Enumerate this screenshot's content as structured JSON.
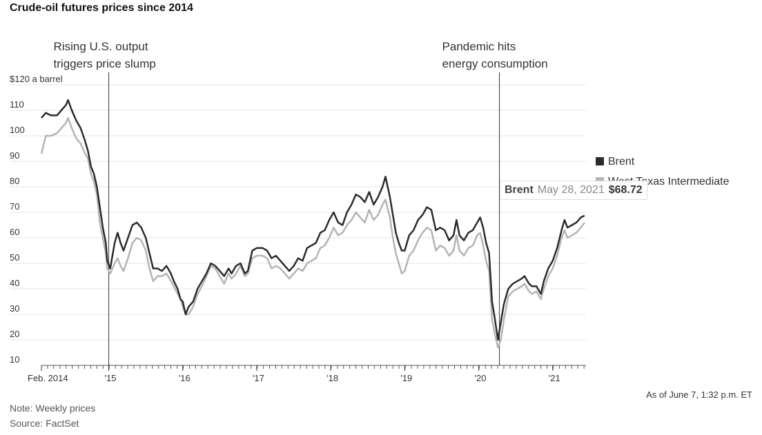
{
  "title": "Crude-oil futures prices since 2014",
  "notes": {
    "note": "Note: Weekly prices",
    "source": "Source: FactSet",
    "asof": "As of June 7, 1:32 p.m. ET"
  },
  "legend": {
    "brent": "Brent",
    "wti": "West Texas Intermediate"
  },
  "tooltip": {
    "series": "Brent",
    "date": "May 28, 2021",
    "value": "$68.72"
  },
  "annotations": [
    {
      "lines": [
        "Rising U.S. output",
        "triggers price slump"
      ],
      "x": 2015.0
    },
    {
      "lines": [
        "Pandemic hits",
        "energy consumption"
      ],
      "x": 2020.28
    }
  ],
  "colors": {
    "brent": "#2b2b2b",
    "wti": "#b4b4b4",
    "grid": "#e6e6e6",
    "annotation_line": "#333333"
  },
  "chart_data": {
    "type": "line",
    "title": "Crude-oil futures prices since 2014",
    "ylabel": "$120 a barrel",
    "xlim": [
      2014.09,
      2021.45
    ],
    "ylim": [
      10,
      120
    ],
    "yticks": [
      120,
      110,
      100,
      90,
      80,
      70,
      60,
      50,
      40,
      30,
      20,
      10
    ],
    "ytick_labels": [
      "$120 a barrel",
      "110",
      "100",
      "90",
      "80",
      "70",
      "60",
      "50",
      "40",
      "30",
      "20",
      "10"
    ],
    "xticks": [
      {
        "x": 2014.09,
        "label": "Feb. 2014"
      },
      {
        "x": 2015.0,
        "label": "'15"
      },
      {
        "x": 2016.0,
        "label": "'16"
      },
      {
        "x": 2017.0,
        "label": "'17"
      },
      {
        "x": 2018.0,
        "label": "'18"
      },
      {
        "x": 2019.0,
        "label": "'19"
      },
      {
        "x": 2020.0,
        "label": "'20"
      },
      {
        "x": 2021.0,
        "label": "'21"
      }
    ],
    "grid": true,
    "legend_position": "right",
    "series": [
      {
        "name": "Brent",
        "points": [
          [
            2014.09,
            107
          ],
          [
            2014.15,
            109
          ],
          [
            2014.22,
            108
          ],
          [
            2014.3,
            108
          ],
          [
            2014.36,
            110
          ],
          [
            2014.42,
            112
          ],
          [
            2014.45,
            114
          ],
          [
            2014.5,
            110
          ],
          [
            2014.56,
            106
          ],
          [
            2014.62,
            103
          ],
          [
            2014.68,
            98
          ],
          [
            2014.72,
            94
          ],
          [
            2014.76,
            88
          ],
          [
            2014.8,
            85
          ],
          [
            2014.84,
            80
          ],
          [
            2014.88,
            72
          ],
          [
            2014.92,
            64
          ],
          [
            2014.96,
            58
          ],
          [
            2014.98,
            51
          ],
          [
            2015.02,
            48
          ],
          [
            2015.08,
            58
          ],
          [
            2015.12,
            62
          ],
          [
            2015.16,
            58
          ],
          [
            2015.2,
            55
          ],
          [
            2015.26,
            60
          ],
          [
            2015.32,
            65
          ],
          [
            2015.38,
            66
          ],
          [
            2015.44,
            64
          ],
          [
            2015.5,
            60
          ],
          [
            2015.55,
            54
          ],
          [
            2015.6,
            48
          ],
          [
            2015.66,
            48
          ],
          [
            2015.72,
            47
          ],
          [
            2015.78,
            49
          ],
          [
            2015.84,
            46
          ],
          [
            2015.88,
            43
          ],
          [
            2015.93,
            40
          ],
          [
            2015.97,
            36
          ],
          [
            2016.0,
            35
          ],
          [
            2016.04,
            30
          ],
          [
            2016.08,
            33
          ],
          [
            2016.14,
            35
          ],
          [
            2016.2,
            40
          ],
          [
            2016.26,
            43
          ],
          [
            2016.32,
            46
          ],
          [
            2016.38,
            50
          ],
          [
            2016.44,
            49
          ],
          [
            2016.5,
            47
          ],
          [
            2016.56,
            45
          ],
          [
            2016.62,
            48
          ],
          [
            2016.66,
            46
          ],
          [
            2016.72,
            49
          ],
          [
            2016.78,
            50
          ],
          [
            2016.84,
            46
          ],
          [
            2016.88,
            47
          ],
          [
            2016.94,
            55
          ],
          [
            2017.0,
            56
          ],
          [
            2017.08,
            56
          ],
          [
            2017.14,
            55
          ],
          [
            2017.2,
            52
          ],
          [
            2017.26,
            53
          ],
          [
            2017.32,
            51
          ],
          [
            2017.38,
            49
          ],
          [
            2017.44,
            47
          ],
          [
            2017.5,
            49
          ],
          [
            2017.56,
            52
          ],
          [
            2017.62,
            51
          ],
          [
            2017.68,
            56
          ],
          [
            2017.74,
            57
          ],
          [
            2017.8,
            58
          ],
          [
            2017.86,
            62
          ],
          [
            2017.92,
            63
          ],
          [
            2017.98,
            67
          ],
          [
            2018.04,
            70
          ],
          [
            2018.1,
            66
          ],
          [
            2018.16,
            65
          ],
          [
            2018.22,
            70
          ],
          [
            2018.28,
            73
          ],
          [
            2018.34,
            77
          ],
          [
            2018.4,
            76
          ],
          [
            2018.46,
            74
          ],
          [
            2018.52,
            78
          ],
          [
            2018.58,
            73
          ],
          [
            2018.64,
            76
          ],
          [
            2018.7,
            80
          ],
          [
            2018.74,
            84
          ],
          [
            2018.8,
            76
          ],
          [
            2018.84,
            69
          ],
          [
            2018.88,
            62
          ],
          [
            2018.92,
            58
          ],
          [
            2018.96,
            55
          ],
          [
            2019.0,
            55
          ],
          [
            2019.06,
            61
          ],
          [
            2019.12,
            63
          ],
          [
            2019.18,
            67
          ],
          [
            2019.24,
            69
          ],
          [
            2019.3,
            72
          ],
          [
            2019.36,
            71
          ],
          [
            2019.42,
            63
          ],
          [
            2019.48,
            64
          ],
          [
            2019.54,
            63
          ],
          [
            2019.6,
            59
          ],
          [
            2019.66,
            61
          ],
          [
            2019.7,
            67
          ],
          [
            2019.74,
            61
          ],
          [
            2019.8,
            59
          ],
          [
            2019.86,
            62
          ],
          [
            2019.92,
            63
          ],
          [
            2019.98,
            66
          ],
          [
            2020.02,
            68
          ],
          [
            2020.06,
            64
          ],
          [
            2020.1,
            58
          ],
          [
            2020.14,
            54
          ],
          [
            2020.18,
            35
          ],
          [
            2020.22,
            28
          ],
          [
            2020.26,
            20
          ],
          [
            2020.3,
            27
          ],
          [
            2020.34,
            34
          ],
          [
            2020.4,
            40
          ],
          [
            2020.46,
            42
          ],
          [
            2020.52,
            43
          ],
          [
            2020.58,
            44
          ],
          [
            2020.62,
            45
          ],
          [
            2020.68,
            42
          ],
          [
            2020.72,
            41
          ],
          [
            2020.78,
            41
          ],
          [
            2020.84,
            38
          ],
          [
            2020.88,
            43
          ],
          [
            2020.94,
            48
          ],
          [
            2021.0,
            51
          ],
          [
            2021.06,
            56
          ],
          [
            2021.12,
            63
          ],
          [
            2021.16,
            67
          ],
          [
            2021.2,
            64
          ],
          [
            2021.26,
            65
          ],
          [
            2021.32,
            66
          ],
          [
            2021.38,
            68
          ],
          [
            2021.43,
            68.72
          ]
        ]
      },
      {
        "name": "West Texas Intermediate",
        "points": [
          [
            2014.09,
            93
          ],
          [
            2014.15,
            100
          ],
          [
            2014.22,
            100
          ],
          [
            2014.3,
            101
          ],
          [
            2014.36,
            103
          ],
          [
            2014.42,
            105
          ],
          [
            2014.45,
            107
          ],
          [
            2014.5,
            103
          ],
          [
            2014.56,
            99
          ],
          [
            2014.62,
            97
          ],
          [
            2014.68,
            93
          ],
          [
            2014.72,
            91
          ],
          [
            2014.76,
            85
          ],
          [
            2014.8,
            82
          ],
          [
            2014.84,
            77
          ],
          [
            2014.88,
            66
          ],
          [
            2014.92,
            60
          ],
          [
            2014.96,
            54
          ],
          [
            2014.98,
            48
          ],
          [
            2015.02,
            46
          ],
          [
            2015.08,
            50
          ],
          [
            2015.12,
            52
          ],
          [
            2015.16,
            49
          ],
          [
            2015.2,
            47
          ],
          [
            2015.26,
            52
          ],
          [
            2015.32,
            58
          ],
          [
            2015.38,
            60
          ],
          [
            2015.44,
            59
          ],
          [
            2015.5,
            55
          ],
          [
            2015.55,
            48
          ],
          [
            2015.6,
            43
          ],
          [
            2015.66,
            45
          ],
          [
            2015.72,
            45
          ],
          [
            2015.78,
            46
          ],
          [
            2015.84,
            43
          ],
          [
            2015.88,
            41
          ],
          [
            2015.93,
            38
          ],
          [
            2015.97,
            36
          ],
          [
            2016.0,
            33
          ],
          [
            2016.04,
            30
          ],
          [
            2016.08,
            30
          ],
          [
            2016.14,
            33
          ],
          [
            2016.2,
            38
          ],
          [
            2016.26,
            41
          ],
          [
            2016.32,
            45
          ],
          [
            2016.38,
            49
          ],
          [
            2016.44,
            48
          ],
          [
            2016.5,
            45
          ],
          [
            2016.56,
            42
          ],
          [
            2016.62,
            46
          ],
          [
            2016.66,
            44
          ],
          [
            2016.72,
            46
          ],
          [
            2016.78,
            49
          ],
          [
            2016.84,
            45
          ],
          [
            2016.88,
            46
          ],
          [
            2016.94,
            52
          ],
          [
            2017.0,
            53
          ],
          [
            2017.08,
            53
          ],
          [
            2017.14,
            52
          ],
          [
            2017.2,
            48
          ],
          [
            2017.26,
            49
          ],
          [
            2017.32,
            48
          ],
          [
            2017.38,
            46
          ],
          [
            2017.44,
            44
          ],
          [
            2017.5,
            46
          ],
          [
            2017.56,
            48
          ],
          [
            2017.62,
            47
          ],
          [
            2017.68,
            50
          ],
          [
            2017.74,
            51
          ],
          [
            2017.8,
            52
          ],
          [
            2017.86,
            56
          ],
          [
            2017.92,
            57
          ],
          [
            2017.98,
            60
          ],
          [
            2018.04,
            64
          ],
          [
            2018.1,
            61
          ],
          [
            2018.16,
            62
          ],
          [
            2018.22,
            65
          ],
          [
            2018.28,
            67
          ],
          [
            2018.34,
            70
          ],
          [
            2018.4,
            68
          ],
          [
            2018.46,
            66
          ],
          [
            2018.52,
            71
          ],
          [
            2018.58,
            67
          ],
          [
            2018.64,
            69
          ],
          [
            2018.7,
            73
          ],
          [
            2018.74,
            75
          ],
          [
            2018.8,
            68
          ],
          [
            2018.84,
            60
          ],
          [
            2018.88,
            54
          ],
          [
            2018.92,
            50
          ],
          [
            2018.96,
            46
          ],
          [
            2019.0,
            47
          ],
          [
            2019.06,
            53
          ],
          [
            2019.12,
            55
          ],
          [
            2019.18,
            59
          ],
          [
            2019.24,
            62
          ],
          [
            2019.3,
            64
          ],
          [
            2019.36,
            63
          ],
          [
            2019.42,
            55
          ],
          [
            2019.48,
            57
          ],
          [
            2019.54,
            56
          ],
          [
            2019.6,
            53
          ],
          [
            2019.66,
            55
          ],
          [
            2019.7,
            61
          ],
          [
            2019.74,
            55
          ],
          [
            2019.8,
            53
          ],
          [
            2019.86,
            56
          ],
          [
            2019.92,
            57
          ],
          [
            2019.98,
            61
          ],
          [
            2020.02,
            62
          ],
          [
            2020.06,
            57
          ],
          [
            2020.1,
            51
          ],
          [
            2020.14,
            47
          ],
          [
            2020.18,
            28
          ],
          [
            2020.22,
            22
          ],
          [
            2020.26,
            17
          ],
          [
            2020.3,
            20
          ],
          [
            2020.34,
            28
          ],
          [
            2020.4,
            37
          ],
          [
            2020.46,
            39
          ],
          [
            2020.52,
            40
          ],
          [
            2020.58,
            41
          ],
          [
            2020.62,
            42
          ],
          [
            2020.68,
            39
          ],
          [
            2020.72,
            38
          ],
          [
            2020.78,
            39
          ],
          [
            2020.84,
            36
          ],
          [
            2020.88,
            40
          ],
          [
            2020.94,
            45
          ],
          [
            2021.0,
            48
          ],
          [
            2021.06,
            53
          ],
          [
            2021.12,
            60
          ],
          [
            2021.16,
            63
          ],
          [
            2021.2,
            60
          ],
          [
            2021.26,
            61
          ],
          [
            2021.32,
            62
          ],
          [
            2021.38,
            64
          ],
          [
            2021.43,
            66
          ]
        ]
      }
    ]
  }
}
